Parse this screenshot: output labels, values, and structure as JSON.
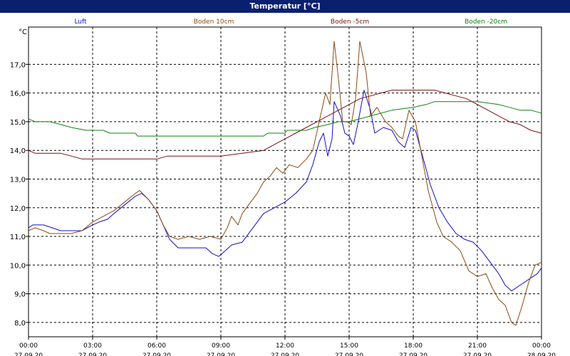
{
  "window": {
    "title": "Temperatur [°C]"
  },
  "chart_data": {
    "type": "line",
    "title": "Temperatur [°C]",
    "ylabel": "°C",
    "xlabel": "",
    "ylim": [
      7.5,
      18.3
    ],
    "xlim": [
      0,
      24
    ],
    "grid": true,
    "legend_placement": "top",
    "y_ticks": [
      "8,0",
      "9,0",
      "10,0",
      "11,0",
      "12,0",
      "13,0",
      "14,0",
      "15,0",
      "16,0",
      "17,0"
    ],
    "x_ticks": [
      {
        "time": "00:00",
        "date": "27.09.20"
      },
      {
        "time": "03:00",
        "date": "27.09.20"
      },
      {
        "time": "06:00",
        "date": "27.09.20"
      },
      {
        "time": "09:00",
        "date": "27.09.20"
      },
      {
        "time": "12:00",
        "date": "27.09.20"
      },
      {
        "time": "15:00",
        "date": "27.09.20"
      },
      {
        "time": "18:00",
        "date": "27.09.20"
      },
      {
        "time": "21:00",
        "date": "27.09.20"
      },
      {
        "time": "00:00",
        "date": "28.09.20"
      }
    ],
    "series": [
      {
        "name": "Luft",
        "color": "#1010c8",
        "points": [
          [
            0,
            11.3
          ],
          [
            0.2,
            11.4
          ],
          [
            0.7,
            11.4
          ],
          [
            1.1,
            11.3
          ],
          [
            1.5,
            11.2
          ],
          [
            2.0,
            11.2
          ],
          [
            2.5,
            11.2
          ],
          [
            3.0,
            11.4
          ],
          [
            3.3,
            11.5
          ],
          [
            3.7,
            11.6
          ],
          [
            4.0,
            11.8
          ],
          [
            4.5,
            12.1
          ],
          [
            5.0,
            12.4
          ],
          [
            5.3,
            12.5
          ],
          [
            5.6,
            12.3
          ],
          [
            6.0,
            11.9
          ],
          [
            6.3,
            11.4
          ],
          [
            6.6,
            10.9
          ],
          [
            7.0,
            10.6
          ],
          [
            7.5,
            10.6
          ],
          [
            8.0,
            10.6
          ],
          [
            8.3,
            10.6
          ],
          [
            8.6,
            10.4
          ],
          [
            8.9,
            10.3
          ],
          [
            9.2,
            10.5
          ],
          [
            9.5,
            10.7
          ],
          [
            10.0,
            10.8
          ],
          [
            10.5,
            11.3
          ],
          [
            11.0,
            11.8
          ],
          [
            11.5,
            12.0
          ],
          [
            12.0,
            12.2
          ],
          [
            12.5,
            12.5
          ],
          [
            13.0,
            12.9
          ],
          [
            13.3,
            13.5
          ],
          [
            13.6,
            14.3
          ],
          [
            13.8,
            14.6
          ],
          [
            14.0,
            13.8
          ],
          [
            14.2,
            14.4
          ],
          [
            14.3,
            15.7
          ],
          [
            14.6,
            15.2
          ],
          [
            14.8,
            14.6
          ],
          [
            15.0,
            14.5
          ],
          [
            15.2,
            14.2
          ],
          [
            15.4,
            14.9
          ],
          [
            15.7,
            16.1
          ],
          [
            16.0,
            15.4
          ],
          [
            16.2,
            14.6
          ],
          [
            16.6,
            14.8
          ],
          [
            17.0,
            14.7
          ],
          [
            17.3,
            14.3
          ],
          [
            17.6,
            14.1
          ],
          [
            17.9,
            14.8
          ],
          [
            18.1,
            14.7
          ],
          [
            18.4,
            13.9
          ],
          [
            18.8,
            12.8
          ],
          [
            19.2,
            12.0
          ],
          [
            19.6,
            11.5
          ],
          [
            20.0,
            11.1
          ],
          [
            20.4,
            10.9
          ],
          [
            20.8,
            10.8
          ],
          [
            21.2,
            10.5
          ],
          [
            21.6,
            10.1
          ],
          [
            22.0,
            9.7
          ],
          [
            22.3,
            9.3
          ],
          [
            22.6,
            9.1
          ],
          [
            23.0,
            9.3
          ],
          [
            23.4,
            9.5
          ],
          [
            23.8,
            9.7
          ],
          [
            24.0,
            9.9
          ]
        ]
      },
      {
        "name": "Boden 10cm",
        "color": "#8a4a14",
        "points": [
          [
            0,
            11.2
          ],
          [
            0.3,
            11.3
          ],
          [
            0.7,
            11.2
          ],
          [
            1.0,
            11.1
          ],
          [
            1.5,
            11.1
          ],
          [
            2.0,
            11.1
          ],
          [
            2.5,
            11.2
          ],
          [
            3.0,
            11.5
          ],
          [
            3.5,
            11.7
          ],
          [
            4.0,
            11.9
          ],
          [
            4.5,
            12.2
          ],
          [
            5.0,
            12.5
          ],
          [
            5.2,
            12.6
          ],
          [
            5.6,
            12.3
          ],
          [
            6.0,
            11.9
          ],
          [
            6.3,
            11.4
          ],
          [
            6.6,
            11.0
          ],
          [
            7.0,
            10.9
          ],
          [
            7.5,
            11.0
          ],
          [
            8.0,
            10.9
          ],
          [
            8.5,
            11.0
          ],
          [
            9.0,
            10.9
          ],
          [
            9.3,
            11.3
          ],
          [
            9.5,
            11.7
          ],
          [
            9.8,
            11.4
          ],
          [
            10.0,
            11.8
          ],
          [
            10.3,
            12.1
          ],
          [
            10.7,
            12.5
          ],
          [
            11.0,
            12.9
          ],
          [
            11.3,
            13.1
          ],
          [
            11.6,
            13.4
          ],
          [
            11.9,
            13.2
          ],
          [
            12.2,
            13.5
          ],
          [
            12.6,
            13.4
          ],
          [
            13.0,
            13.7
          ],
          [
            13.3,
            14.0
          ],
          [
            13.6,
            15.0
          ],
          [
            13.9,
            16.0
          ],
          [
            14.1,
            15.6
          ],
          [
            14.3,
            17.8
          ],
          [
            14.5,
            16.5
          ],
          [
            14.7,
            15.0
          ],
          [
            14.9,
            15.0
          ],
          [
            15.1,
            14.9
          ],
          [
            15.3,
            15.8
          ],
          [
            15.5,
            17.8
          ],
          [
            15.8,
            16.7
          ],
          [
            16.0,
            15.2
          ],
          [
            16.3,
            15.5
          ],
          [
            16.7,
            15.0
          ],
          [
            17.0,
            14.8
          ],
          [
            17.3,
            14.5
          ],
          [
            17.5,
            14.4
          ],
          [
            17.8,
            15.4
          ],
          [
            18.1,
            15.0
          ],
          [
            18.4,
            13.8
          ],
          [
            18.7,
            12.6
          ],
          [
            19.1,
            11.5
          ],
          [
            19.4,
            11.0
          ],
          [
            19.8,
            10.8
          ],
          [
            20.2,
            10.5
          ],
          [
            20.6,
            9.8
          ],
          [
            21.0,
            9.6
          ],
          [
            21.4,
            9.7
          ],
          [
            21.7,
            9.2
          ],
          [
            22.0,
            8.8
          ],
          [
            22.3,
            8.6
          ],
          [
            22.6,
            8.0
          ],
          [
            22.8,
            7.9
          ],
          [
            23.1,
            8.6
          ],
          [
            23.4,
            9.4
          ],
          [
            23.7,
            10.0
          ],
          [
            24.0,
            10.1
          ]
        ]
      },
      {
        "name": "Boden -5cm",
        "color": "#7a1010",
        "points": [
          [
            0,
            14.0
          ],
          [
            0.3,
            13.9
          ],
          [
            1.0,
            13.9
          ],
          [
            1.5,
            13.9
          ],
          [
            2.0,
            13.8
          ],
          [
            2.5,
            13.7
          ],
          [
            3.0,
            13.7
          ],
          [
            4.0,
            13.7
          ],
          [
            5.0,
            13.7
          ],
          [
            6.0,
            13.7
          ],
          [
            6.5,
            13.8
          ],
          [
            7.0,
            13.8
          ],
          [
            8.0,
            13.8
          ],
          [
            9.0,
            13.8
          ],
          [
            10.0,
            13.9
          ],
          [
            11.0,
            14.0
          ],
          [
            11.5,
            14.2
          ],
          [
            12.0,
            14.4
          ],
          [
            12.5,
            14.6
          ],
          [
            13.0,
            14.8
          ],
          [
            13.5,
            15.0
          ],
          [
            14.0,
            15.2
          ],
          [
            14.5,
            15.4
          ],
          [
            15.0,
            15.6
          ],
          [
            15.5,
            15.8
          ],
          [
            16.0,
            15.9
          ],
          [
            16.5,
            16.0
          ],
          [
            17.0,
            16.1
          ],
          [
            18.0,
            16.1
          ],
          [
            19.0,
            16.1
          ],
          [
            19.5,
            16.0
          ],
          [
            20.0,
            15.9
          ],
          [
            20.5,
            15.8
          ],
          [
            21.0,
            15.6
          ],
          [
            21.5,
            15.4
          ],
          [
            22.0,
            15.2
          ],
          [
            22.5,
            15.0
          ],
          [
            23.0,
            14.9
          ],
          [
            23.5,
            14.7
          ],
          [
            24.0,
            14.6
          ]
        ]
      },
      {
        "name": "Boden -20cm",
        "color": "#108010",
        "points": [
          [
            0,
            15.1
          ],
          [
            0.3,
            15.0
          ],
          [
            1.0,
            15.0
          ],
          [
            1.5,
            14.9
          ],
          [
            2.0,
            14.8
          ],
          [
            2.7,
            14.7
          ],
          [
            3.5,
            14.7
          ],
          [
            3.8,
            14.6
          ],
          [
            5.0,
            14.6
          ],
          [
            5.1,
            14.5
          ],
          [
            6.0,
            14.5
          ],
          [
            8.0,
            14.5
          ],
          [
            9.0,
            14.5
          ],
          [
            11.0,
            14.5
          ],
          [
            11.2,
            14.6
          ],
          [
            12.0,
            14.6
          ],
          [
            12.1,
            14.7
          ],
          [
            13.0,
            14.7
          ],
          [
            13.4,
            14.8
          ],
          [
            14.0,
            14.9
          ],
          [
            14.5,
            15.0
          ],
          [
            15.0,
            15.0
          ],
          [
            15.5,
            15.1
          ],
          [
            16.0,
            15.2
          ],
          [
            17.0,
            15.4
          ],
          [
            18.0,
            15.5
          ],
          [
            18.6,
            15.6
          ],
          [
            19.0,
            15.7
          ],
          [
            20.0,
            15.7
          ],
          [
            21.0,
            15.7
          ],
          [
            22.0,
            15.6
          ],
          [
            22.5,
            15.5
          ],
          [
            23.0,
            15.4
          ],
          [
            23.5,
            15.4
          ],
          [
            24.0,
            15.3
          ]
        ]
      }
    ]
  }
}
